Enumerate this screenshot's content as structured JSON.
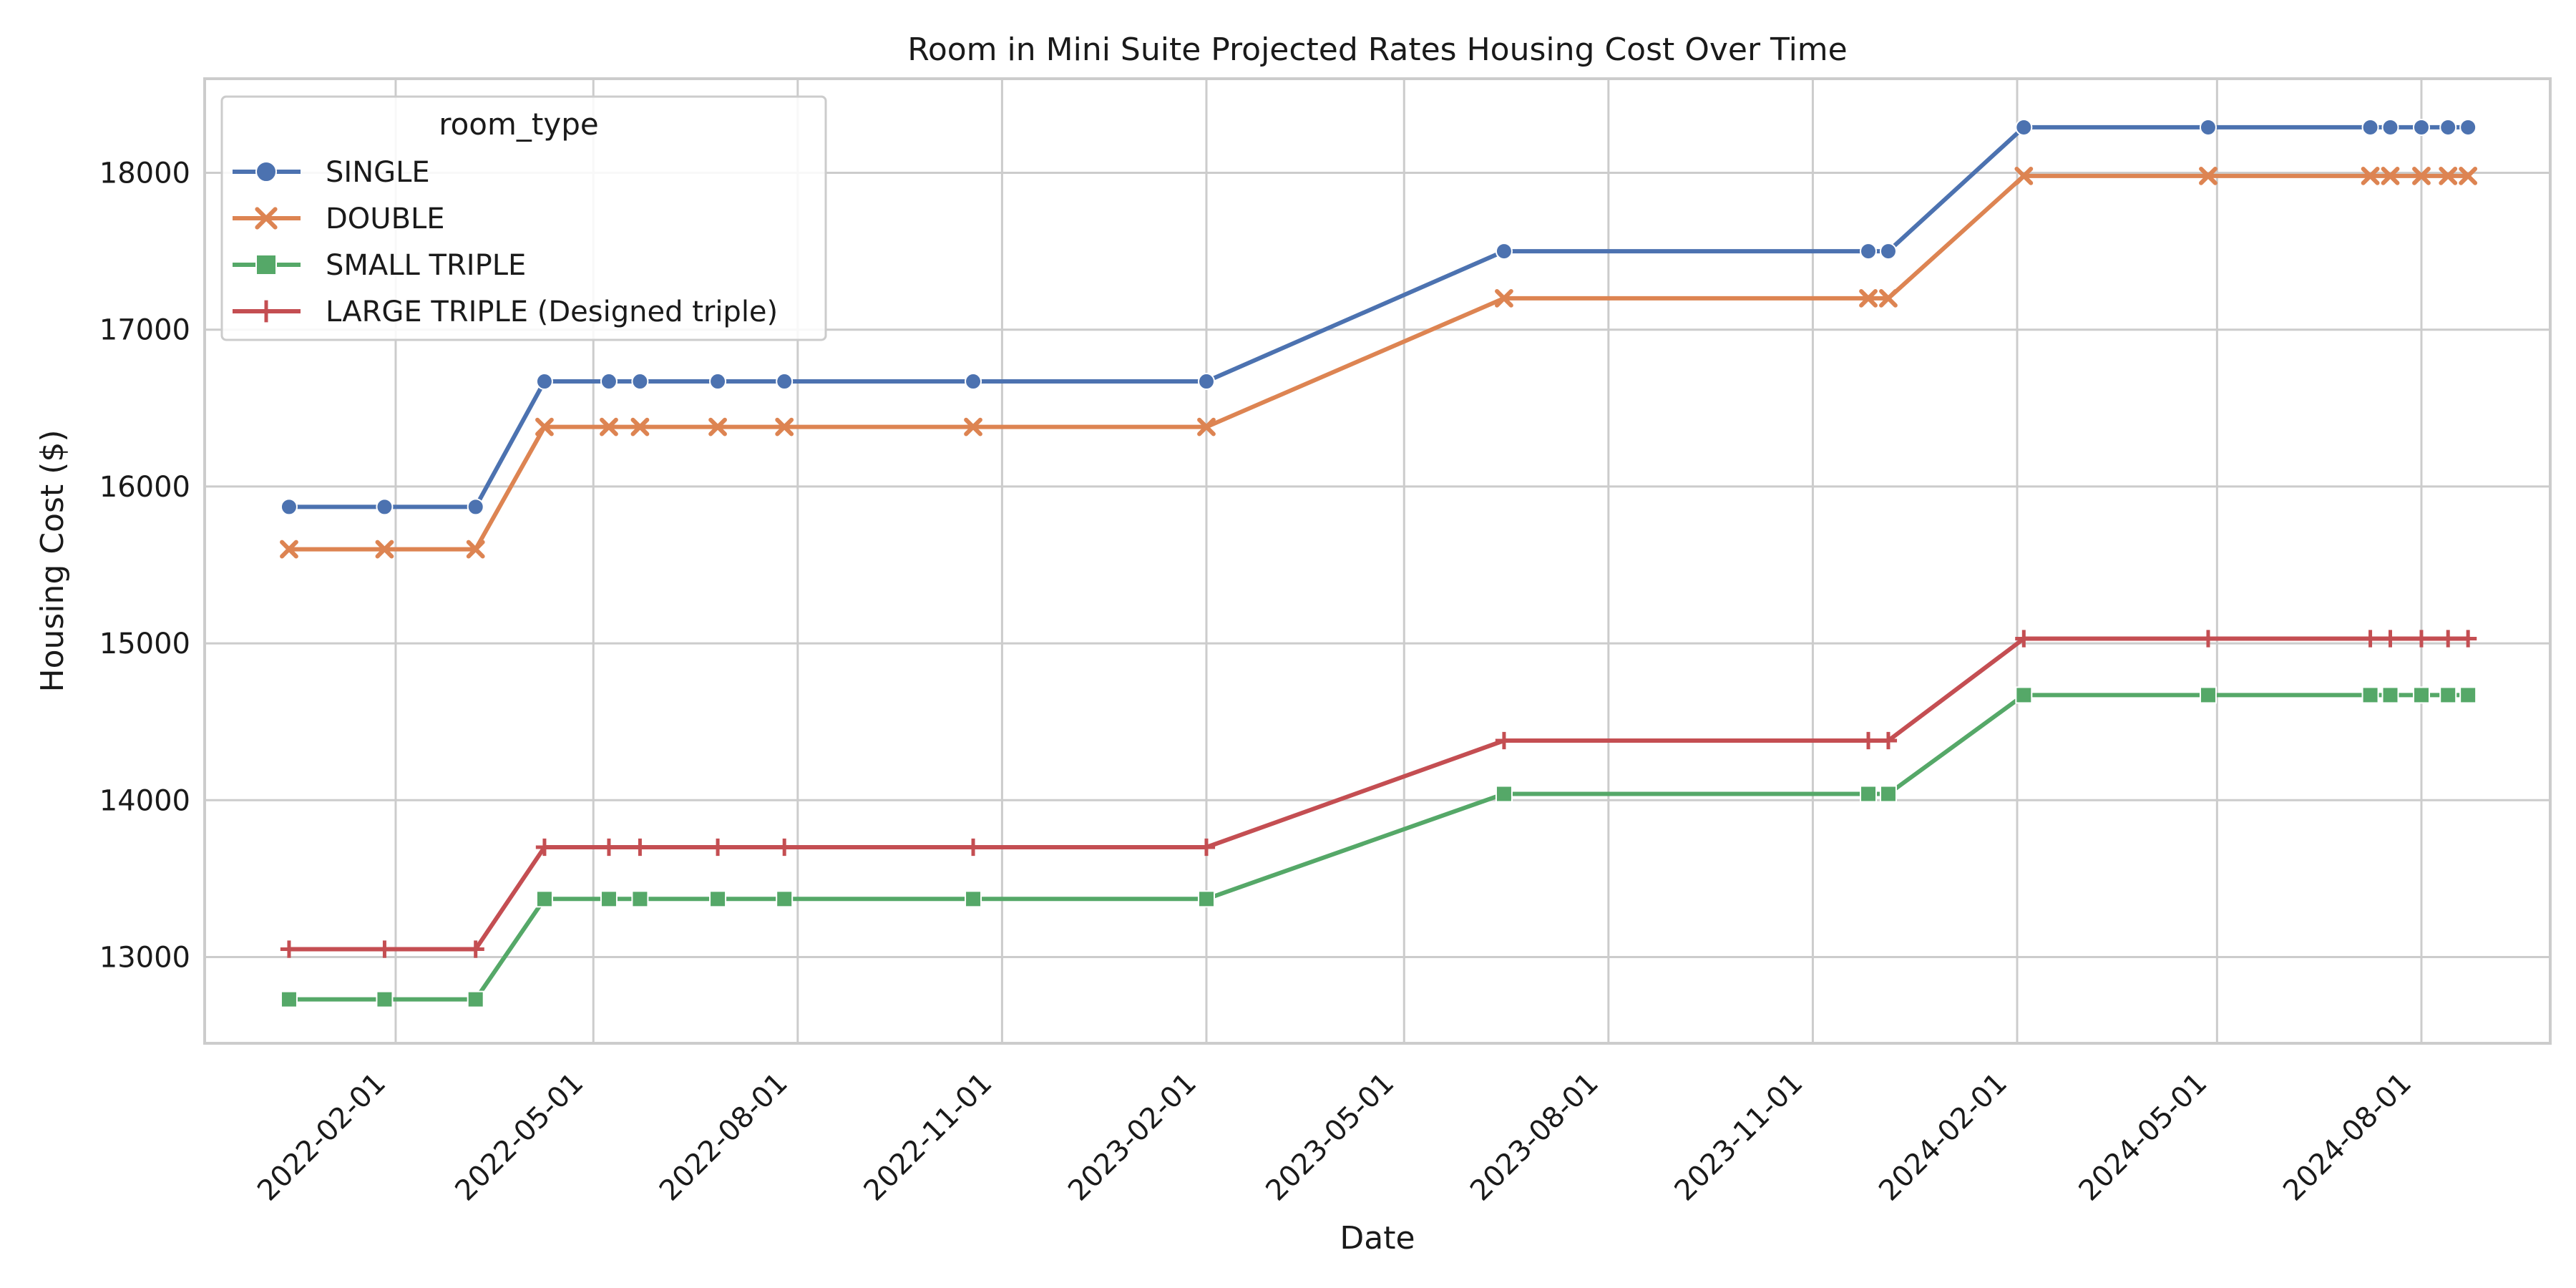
{
  "chart_data": {
    "type": "line",
    "title": "Room in Mini Suite Projected Rates Housing Cost Over Time",
    "xlabel": "Date",
    "ylabel": "Housing Cost ($)",
    "xlim": [
      "2021-11-07",
      "2024-09-28"
    ],
    "ylim": [
      12450,
      18600
    ],
    "x_ticks": [
      "2022-02-01",
      "2022-05-01",
      "2022-08-01",
      "2022-11-01",
      "2023-02-01",
      "2023-05-01",
      "2023-08-01",
      "2023-11-01",
      "2024-02-01",
      "2024-05-01",
      "2024-08-01"
    ],
    "y_ticks": [
      13000,
      14000,
      15000,
      16000,
      17000,
      18000
    ],
    "grid": true,
    "legend": {
      "title": "room_type",
      "placement": "top-left"
    },
    "x": [
      "2021-12-15",
      "2022-01-27",
      "2022-03-09",
      "2022-04-09",
      "2022-05-08",
      "2022-05-22",
      "2022-06-26",
      "2022-07-26",
      "2022-10-19",
      "2023-02-01",
      "2023-06-15",
      "2023-11-26",
      "2023-12-05",
      "2024-02-04",
      "2024-04-27",
      "2024-07-09",
      "2024-07-18",
      "2024-08-01",
      "2024-08-13",
      "2024-08-22"
    ],
    "series": [
      {
        "name": "SINGLE",
        "color": "#4c72b0",
        "marker": "circle",
        "values": [
          15870,
          15870,
          15870,
          16670,
          16670,
          16670,
          16670,
          16670,
          16670,
          16670,
          17500,
          17500,
          17500,
          18290,
          18290,
          18290,
          18290,
          18290,
          18290,
          18290
        ]
      },
      {
        "name": "DOUBLE",
        "color": "#dd8452",
        "marker": "x",
        "values": [
          15600,
          15600,
          15600,
          16380,
          16380,
          16380,
          16380,
          16380,
          16380,
          16380,
          17200,
          17200,
          17200,
          17980,
          17980,
          17980,
          17980,
          17980,
          17980,
          17980
        ]
      },
      {
        "name": "SMALL TRIPLE",
        "color": "#55a868",
        "marker": "square",
        "values": [
          12730,
          12730,
          12730,
          13370,
          13370,
          13370,
          13370,
          13370,
          13370,
          13370,
          14040,
          14040,
          14040,
          14670,
          14670,
          14670,
          14670,
          14670,
          14670,
          14670
        ]
      },
      {
        "name": "LARGE TRIPLE (Designed triple)",
        "color": "#c44e52",
        "marker": "plus",
        "values": [
          13050,
          13050,
          13050,
          13700,
          13700,
          13700,
          13700,
          13700,
          13700,
          13700,
          14380,
          14380,
          14380,
          15030,
          15030,
          15030,
          15030,
          15030,
          15030,
          15030
        ]
      }
    ]
  }
}
